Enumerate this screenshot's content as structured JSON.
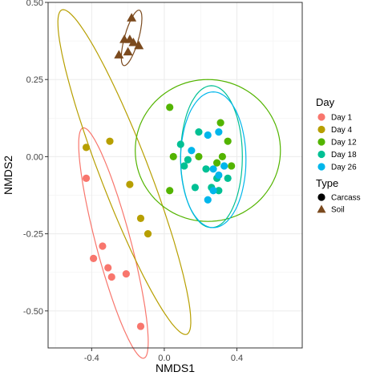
{
  "chart_data": {
    "type": "scatter",
    "xlabel": "NMDS1",
    "ylabel": "NMDS2",
    "xlim": [
      -0.64,
      0.76
    ],
    "ylim": [
      -0.62,
      0.5
    ],
    "x_ticks": [
      -0.4,
      0.0,
      0.4
    ],
    "x_tick_labels": [
      "-0.4",
      "0.0",
      "0.4"
    ],
    "y_ticks": [
      -0.5,
      -0.25,
      0.0,
      0.25,
      0.5
    ],
    "y_tick_labels": [
      "-0.50",
      "-0.25",
      "0.00",
      "0.25",
      "0.50"
    ],
    "grid": true,
    "legend_placement": "right",
    "legend": {
      "day_title": "Day",
      "type_title": "Type",
      "days": [
        {
          "label": "Day 1",
          "color": "#F8766D"
        },
        {
          "label": "Day 4",
          "color": "#B79F00"
        },
        {
          "label": "Day 12",
          "color": "#53B400"
        },
        {
          "label": "Day 18",
          "color": "#00C094"
        },
        {
          "label": "Day 26",
          "color": "#00B6EB"
        }
      ],
      "types": [
        {
          "label": "Carcass",
          "shape": "circle"
        },
        {
          "label": "Soil",
          "shape": "triangle"
        }
      ]
    },
    "soil_color": "#7B4A1E",
    "series": [
      {
        "day": "Day 1",
        "type": "Carcass",
        "points": [
          [
            -0.43,
            -0.07
          ],
          [
            -0.39,
            -0.33
          ],
          [
            -0.34,
            -0.29
          ],
          [
            -0.31,
            -0.36
          ],
          [
            -0.29,
            -0.39
          ],
          [
            -0.21,
            -0.38
          ],
          [
            -0.13,
            -0.55
          ]
        ]
      },
      {
        "day": "Day 4",
        "type": "Carcass",
        "points": [
          [
            -0.43,
            0.03
          ],
          [
            -0.3,
            0.05
          ],
          [
            -0.19,
            -0.09
          ],
          [
            -0.13,
            -0.2
          ],
          [
            -0.09,
            -0.25
          ]
        ]
      },
      {
        "day": "Day 12",
        "type": "Carcass",
        "points": [
          [
            0.03,
            0.16
          ],
          [
            0.31,
            0.11
          ],
          [
            0.05,
            0.0
          ],
          [
            0.35,
            0.05
          ],
          [
            0.19,
            0.0
          ],
          [
            0.29,
            -0.02
          ],
          [
            0.32,
            0.0
          ],
          [
            0.37,
            -0.03
          ],
          [
            0.03,
            -0.11
          ]
        ]
      },
      {
        "day": "Day 18",
        "type": "Carcass",
        "points": [
          [
            0.19,
            0.08
          ],
          [
            0.09,
            0.04
          ],
          [
            0.13,
            -0.01
          ],
          [
            0.11,
            -0.03
          ],
          [
            0.23,
            -0.04
          ],
          [
            0.29,
            -0.07
          ],
          [
            0.35,
            -0.07
          ],
          [
            0.17,
            -0.1
          ],
          [
            0.3,
            -0.11
          ],
          [
            0.26,
            -0.1
          ]
        ]
      },
      {
        "day": "Day 26",
        "type": "Carcass",
        "points": [
          [
            0.24,
            0.07
          ],
          [
            0.15,
            0.02
          ],
          [
            0.3,
            0.08
          ],
          [
            0.27,
            -0.04
          ],
          [
            0.33,
            -0.03
          ],
          [
            0.3,
            -0.06
          ],
          [
            0.24,
            -0.14
          ],
          [
            0.27,
            -0.11
          ]
        ]
      },
      {
        "day": "Day 1",
        "type": "Soil",
        "points": [
          [
            -0.18,
            0.45
          ],
          [
            -0.22,
            0.38
          ],
          [
            -0.19,
            0.38
          ],
          [
            -0.17,
            0.37
          ],
          [
            -0.2,
            0.34
          ],
          [
            -0.14,
            0.36
          ],
          [
            -0.25,
            0.33
          ]
        ]
      }
    ],
    "ellipses": [
      {
        "group": "Soil",
        "cx": -0.18,
        "cy": 0.385,
        "rx": 0.1,
        "ry": 0.036,
        "angle_deg": 62
      },
      {
        "group": "Day 1",
        "cx": -0.28,
        "cy": -0.28,
        "rx": 0.41,
        "ry": 0.09,
        "angle_deg": -65
      },
      {
        "group": "Day 4",
        "cx": -0.22,
        "cy": -0.05,
        "rx": 0.63,
        "ry": 0.12,
        "angle_deg": -56
      },
      {
        "group": "Day 12",
        "cx": 0.24,
        "cy": 0.02,
        "rx": 0.4,
        "ry": 0.23,
        "angle_deg": 0
      },
      {
        "group": "Day 18",
        "cx": 0.26,
        "cy": 0.0,
        "rx": 0.17,
        "ry": 0.23,
        "angle_deg": 0
      },
      {
        "group": "Day 26",
        "cx": 0.27,
        "cy": -0.01,
        "rx": 0.18,
        "ry": 0.22,
        "angle_deg": 0
      }
    ]
  }
}
